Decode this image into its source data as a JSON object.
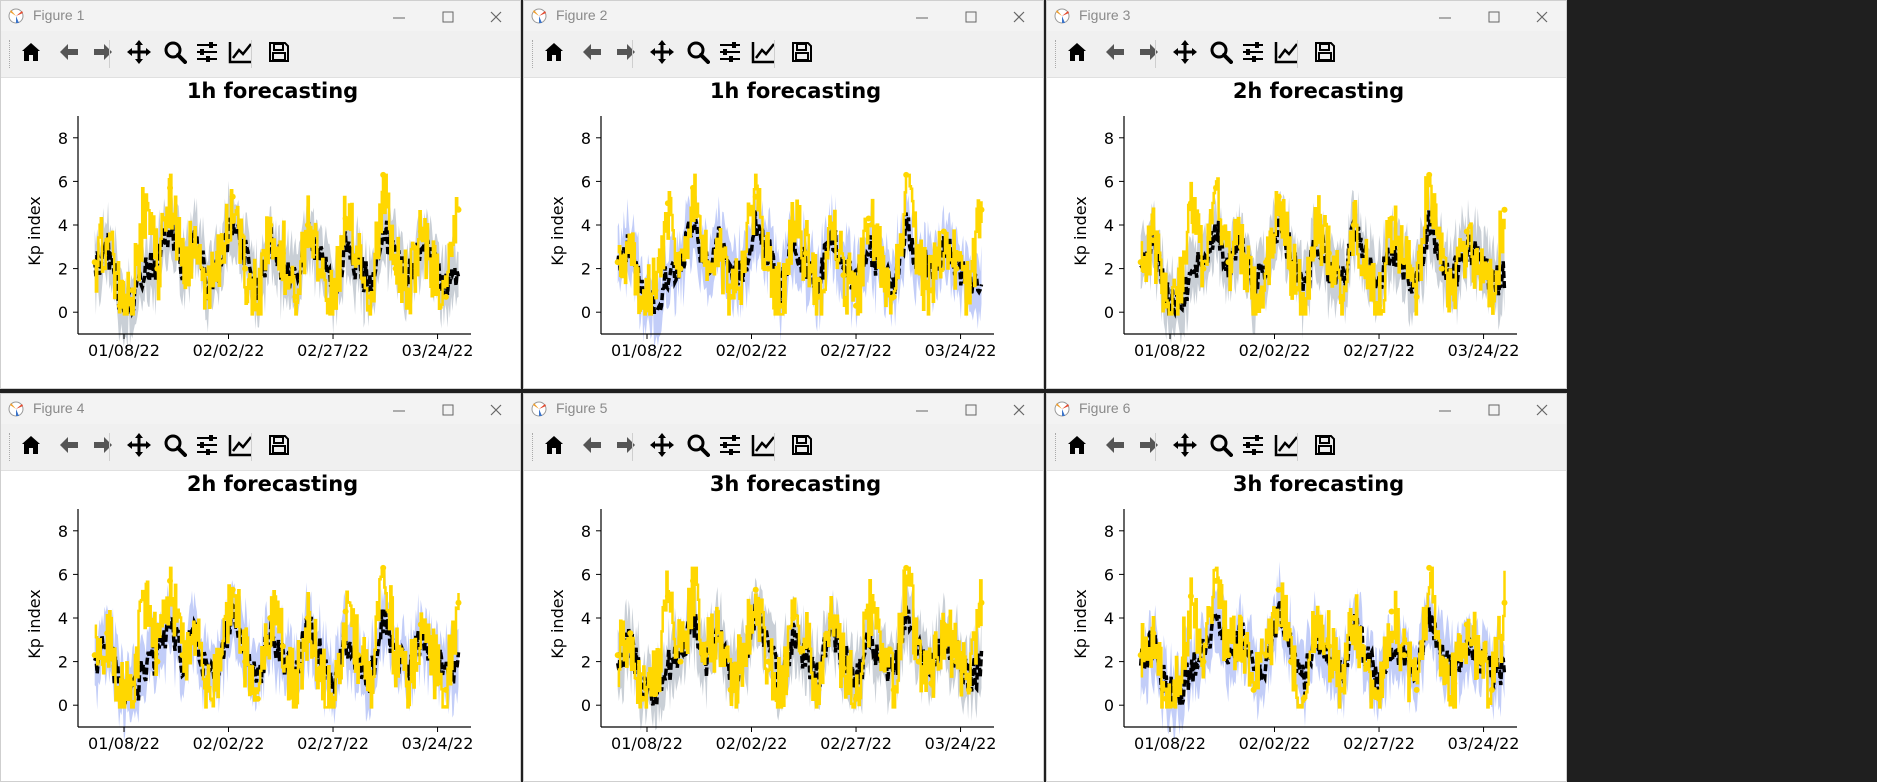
{
  "colors": {
    "actual": "#000000",
    "forecast": "#ffd700",
    "band_gray": "#b7bfc8",
    "band_blue": "#aebcf5"
  },
  "toolbar_icons": [
    "home-icon",
    "back-arrow-icon",
    "forward-arrow-icon",
    "pan-icon",
    "zoom-icon",
    "configure-subplots-icon",
    "edit-axis-icon",
    "save-icon"
  ],
  "windows": [
    {
      "title": "Figure 1",
      "chart_title": "1h forecasting",
      "band": "gray"
    },
    {
      "title": "Figure 2",
      "chart_title": "1h forecasting",
      "band": "blue"
    },
    {
      "title": "Figure 3",
      "chart_title": "2h forecasting",
      "band": "gray"
    },
    {
      "title": "Figure 4",
      "chart_title": "2h forecasting",
      "band": "blue"
    },
    {
      "title": "Figure 5",
      "chart_title": "3h forecasting",
      "band": "gray"
    },
    {
      "title": "Figure 6",
      "chart_title": "3h forecasting",
      "band": "blue"
    }
  ],
  "chart_data": {
    "type": "line",
    "ylabel": "Kp index",
    "ylim": [
      -1,
      9
    ],
    "yticks": [
      0,
      2,
      4,
      6,
      8
    ],
    "xlim": [
      "2021-12-28",
      "2022-04-01"
    ],
    "xtick_labels": [
      "01/08/22",
      "02/02/22",
      "02/27/22",
      "03/24/22"
    ],
    "series": [
      {
        "role": "actual",
        "color": "#000000",
        "x": [
          "2022-01-01",
          "2022-01-04",
          "2022-01-07",
          "2022-01-10",
          "2022-01-13",
          "2022-01-16",
          "2022-01-19",
          "2022-01-22",
          "2022-01-25",
          "2022-01-28",
          "2022-01-31",
          "2022-02-03",
          "2022-02-06",
          "2022-02-09",
          "2022-02-12",
          "2022-02-15",
          "2022-02-18",
          "2022-02-21",
          "2022-02-24",
          "2022-02-27",
          "2022-03-02",
          "2022-03-05",
          "2022-03-08",
          "2022-03-11",
          "2022-03-14",
          "2022-03-17",
          "2022-03-20",
          "2022-03-23",
          "2022-03-26",
          "2022-03-29"
        ],
        "y": [
          2.0,
          3.0,
          0.7,
          0.3,
          1.7,
          2.3,
          4.0,
          2.0,
          3.3,
          1.3,
          2.0,
          4.3,
          2.7,
          1.0,
          3.3,
          2.0,
          1.3,
          3.7,
          2.3,
          1.0,
          3.0,
          2.0,
          1.3,
          4.0,
          2.3,
          1.7,
          3.0,
          2.3,
          1.3,
          1.7
        ]
      },
      {
        "role": "forecast",
        "color": "#ffd700",
        "x": [
          "2022-01-01",
          "2022-01-04",
          "2022-01-07",
          "2022-01-10",
          "2022-01-13",
          "2022-01-16",
          "2022-01-19",
          "2022-01-22",
          "2022-01-25",
          "2022-01-28",
          "2022-01-31",
          "2022-02-03",
          "2022-02-06",
          "2022-02-09",
          "2022-02-12",
          "2022-02-15",
          "2022-02-18",
          "2022-02-21",
          "2022-02-24",
          "2022-02-27",
          "2022-03-02",
          "2022-03-05",
          "2022-03-08",
          "2022-03-11",
          "2022-03-14",
          "2022-03-17",
          "2022-03-20",
          "2022-03-23",
          "2022-03-26",
          "2022-03-29"
        ],
        "y": [
          2.3,
          3.3,
          0.3,
          1.0,
          5.0,
          2.0,
          5.7,
          2.3,
          3.0,
          0.7,
          2.3,
          5.3,
          2.0,
          0.3,
          4.0,
          2.7,
          0.7,
          4.0,
          1.7,
          0.3,
          4.3,
          2.3,
          0.7,
          6.3,
          2.0,
          1.0,
          3.7,
          2.0,
          0.7,
          4.7
        ]
      }
    ]
  }
}
